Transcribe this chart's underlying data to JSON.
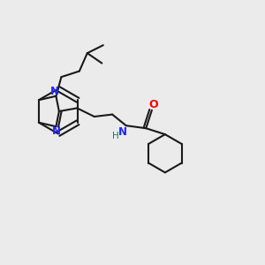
{
  "bg_color": "#ebebeb",
  "bond_color": "#1a1a1a",
  "N_color": "#2222ff",
  "NH_color": "#008080",
  "O_color": "#ff0000",
  "line_width": 1.5,
  "fig_size": [
    3.0,
    3.0
  ],
  "dpi": 100,
  "xlim": [
    0,
    10
  ],
  "ylim": [
    0,
    10
  ]
}
